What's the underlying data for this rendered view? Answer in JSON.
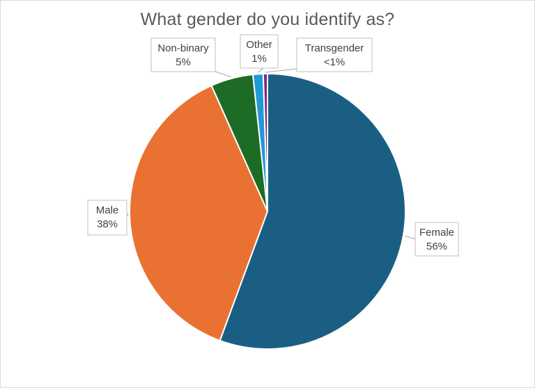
{
  "chart_data": {
    "type": "pie",
    "title": "What gender do you identify as?",
    "slices": [
      {
        "label": "Female",
        "value_text": "56%",
        "value": 56.0,
        "color": "#1a5f83"
      },
      {
        "label": "Male",
        "value_text": "38%",
        "value": 38.0,
        "color": "#e97233"
      },
      {
        "label": "Non-binary",
        "value_text": "5%",
        "value": 5.0,
        "color": "#1e6b26"
      },
      {
        "label": "Other",
        "value_text": "1%",
        "value": 1.2,
        "color": "#1e9ad6"
      },
      {
        "label": "Transgender",
        "value_text": "<1%",
        "value": 0.5,
        "color": "#7a2b8f"
      }
    ],
    "start_angle_deg": 0,
    "direction": "clockwise",
    "legend": "none",
    "data_labels": "callouts"
  }
}
